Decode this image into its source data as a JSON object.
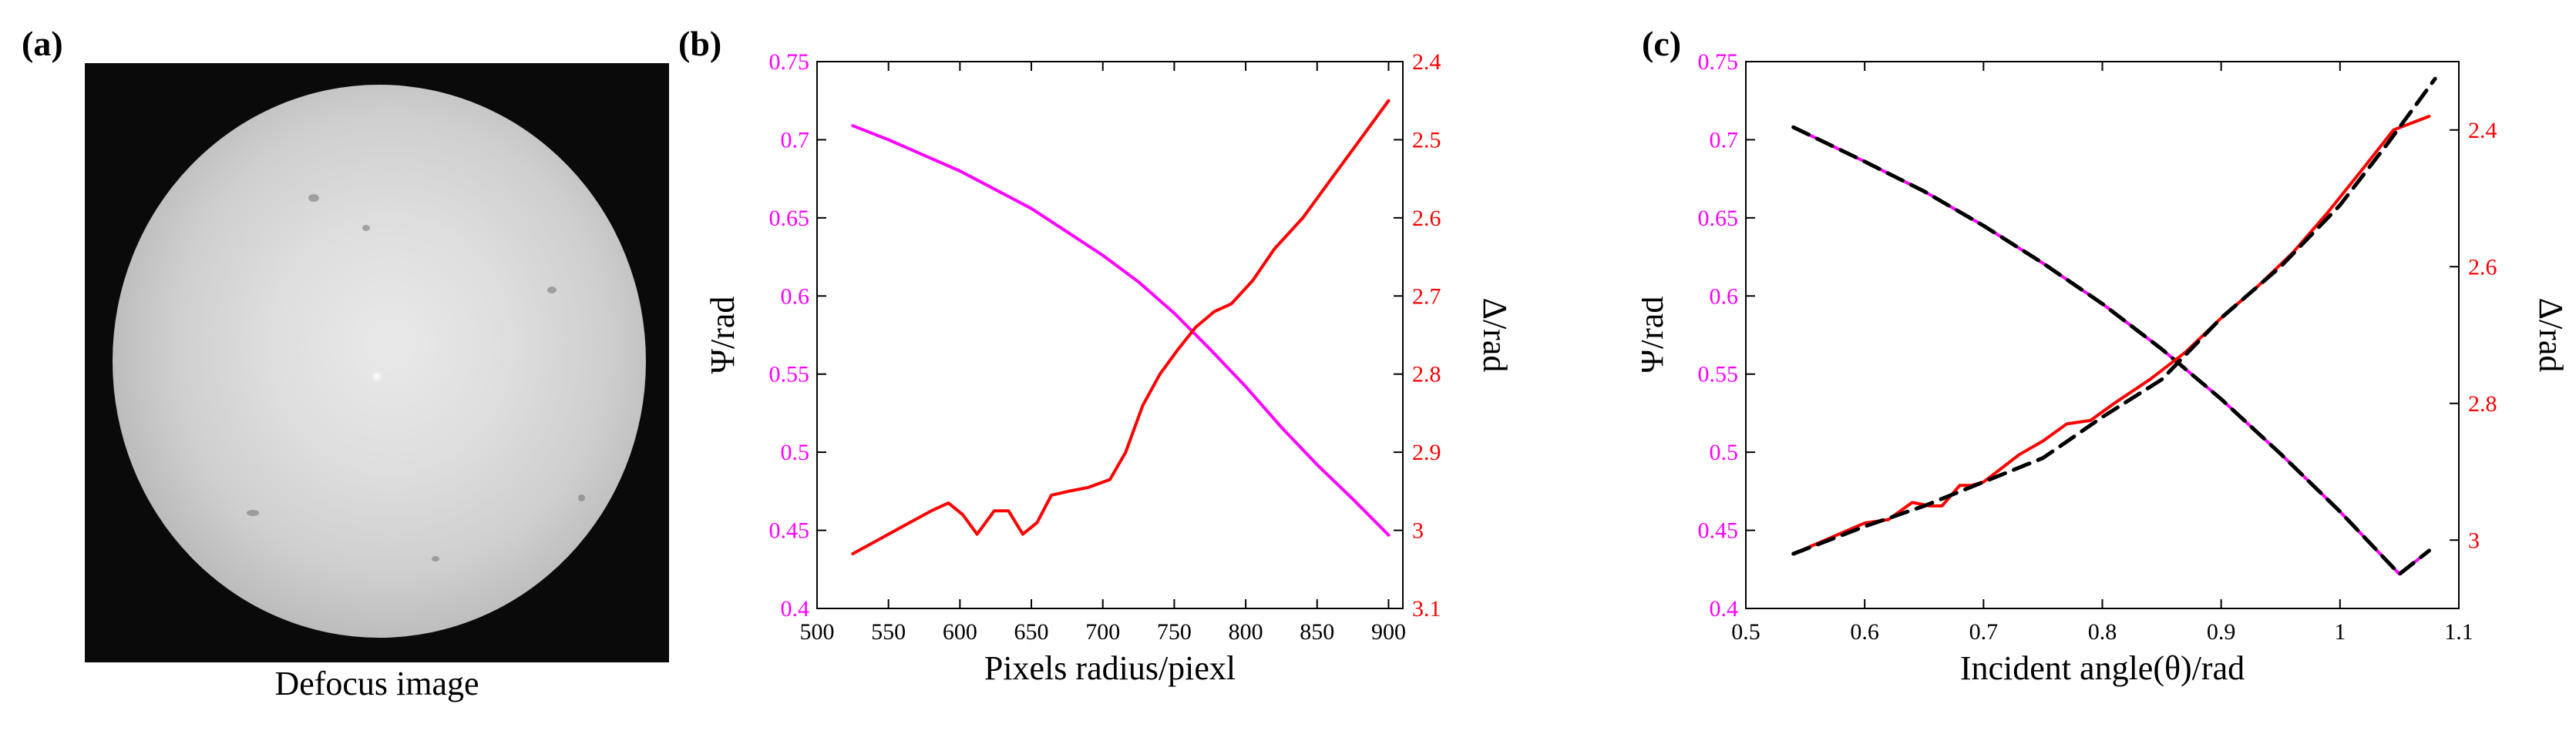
{
  "panels": {
    "a": {
      "label": "(a)",
      "caption": "Defocus image"
    },
    "b": {
      "label": "(b)"
    },
    "c": {
      "label": "(c)"
    }
  },
  "colors": {
    "psi": "#ff00ff",
    "delta": "#ff0000",
    "fit": "#000000",
    "axis": "#000000"
  },
  "chart_data": [
    {
      "type": "line",
      "panel": "b",
      "title": "",
      "xlabel": "Pixels radius/piexl",
      "ylabel_left": "Ψ/rad",
      "ylabel_right": "Δ/rad",
      "xlim": [
        500,
        910
      ],
      "ylim_left": [
        0.4,
        0.75
      ],
      "ylim_right_inverted": [
        2.4,
        3.1
      ],
      "x_ticks": [
        "500",
        "550",
        "600",
        "650",
        "700",
        "750",
        "800",
        "850",
        "900"
      ],
      "y_left_ticks": [
        "0.4",
        "0.45",
        "0.5",
        "0.55",
        "0.6",
        "0.65",
        "0.7",
        "0.75"
      ],
      "y_right_ticks": [
        "2.4",
        "2.5",
        "2.6",
        "2.7",
        "2.8",
        "2.9",
        "3",
        "3.1"
      ],
      "series": [
        {
          "name": "Ψ",
          "axis": "left",
          "color": "#ff00ff",
          "x": [
            525,
            550,
            575,
            600,
            625,
            650,
            675,
            700,
            725,
            750,
            775,
            800,
            825,
            850,
            875,
            900
          ],
          "y": [
            0.709,
            0.7,
            0.69,
            0.68,
            0.668,
            0.656,
            0.641,
            0.626,
            0.609,
            0.589,
            0.566,
            0.542,
            0.516,
            0.492,
            0.47,
            0.447
          ]
        },
        {
          "name": "Δ",
          "axis": "right",
          "color": "#ff0000",
          "x": [
            525,
            545,
            565,
            580,
            592,
            602,
            612,
            624,
            634,
            644,
            654,
            664,
            676,
            690,
            705,
            716,
            728,
            740,
            752,
            765,
            778,
            790,
            805,
            820,
            840,
            860,
            880,
            900
          ],
          "y": [
            3.03,
            3.01,
            2.99,
            2.975,
            2.965,
            2.98,
            3.005,
            2.975,
            2.975,
            3.005,
            2.99,
            2.955,
            2.95,
            2.945,
            2.935,
            2.9,
            2.84,
            2.8,
            2.77,
            2.74,
            2.72,
            2.71,
            2.68,
            2.64,
            2.6,
            2.55,
            2.5,
            2.45
          ]
        }
      ]
    },
    {
      "type": "line",
      "panel": "c",
      "title": "",
      "xlabel": "Incident angle(θ)/rad",
      "ylabel_left": "Ψ/rad",
      "ylabel_right": "Δ/rad",
      "xlim": [
        0.5,
        1.1
      ],
      "ylim_left": [
        0.4,
        0.75
      ],
      "ylim_right_inverted": [
        2.3,
        3.1
      ],
      "x_ticks": [
        "0.5",
        "0.6",
        "0.7",
        "0.8",
        "0.9",
        "1",
        "1.1"
      ],
      "y_left_ticks": [
        "0.4",
        "0.45",
        "0.5",
        "0.55",
        "0.6",
        "0.65",
        "0.7",
        "0.75"
      ],
      "y_right_ticks": [
        "2.4",
        "2.6",
        "2.8",
        "3"
      ],
      "series": [
        {
          "name": "Ψ measured",
          "axis": "left",
          "color": "#ff00ff",
          "x": [
            0.54,
            0.6,
            0.65,
            0.7,
            0.75,
            0.8,
            0.85,
            0.9,
            0.95,
            1.0,
            1.05,
            1.075
          ],
          "y": [
            0.708,
            0.686,
            0.667,
            0.645,
            0.621,
            0.595,
            0.566,
            0.534,
            0.499,
            0.462,
            0.422,
            0.437
          ]
        },
        {
          "name": "Ψ fit",
          "axis": "left",
          "color": "#000000",
          "dashed": true,
          "x": [
            0.54,
            0.6,
            0.65,
            0.7,
            0.75,
            0.8,
            0.85,
            0.9,
            0.95,
            1.0,
            1.05,
            1.075
          ],
          "y": [
            0.708,
            0.686,
            0.667,
            0.645,
            0.621,
            0.595,
            0.566,
            0.534,
            0.499,
            0.462,
            0.422,
            0.437
          ]
        },
        {
          "name": "Δ measured",
          "axis": "right",
          "color": "#ff0000",
          "x": [
            0.54,
            0.56,
            0.6,
            0.62,
            0.64,
            0.655,
            0.665,
            0.68,
            0.69,
            0.7,
            0.715,
            0.73,
            0.75,
            0.77,
            0.79,
            0.81,
            0.84,
            0.87,
            0.9,
            0.93,
            0.96,
            0.99,
            1.02,
            1.045,
            1.06,
            1.075
          ],
          "y": [
            3.02,
            3.005,
            2.975,
            2.97,
            2.945,
            2.95,
            2.95,
            2.92,
            2.92,
            2.915,
            2.895,
            2.875,
            2.855,
            2.83,
            2.825,
            2.8,
            2.765,
            2.725,
            2.675,
            2.63,
            2.58,
            2.52,
            2.455,
            2.4,
            2.39,
            2.38
          ]
        },
        {
          "name": "Δ fit",
          "axis": "right",
          "color": "#000000",
          "dashed": true,
          "x": [
            0.54,
            0.6,
            0.65,
            0.7,
            0.75,
            0.8,
            0.85,
            0.9,
            0.95,
            1.0,
            1.04,
            1.08
          ],
          "y": [
            3.02,
            2.98,
            2.95,
            2.915,
            2.88,
            2.82,
            2.765,
            2.675,
            2.6,
            2.51,
            2.42,
            2.325
          ]
        }
      ]
    }
  ]
}
